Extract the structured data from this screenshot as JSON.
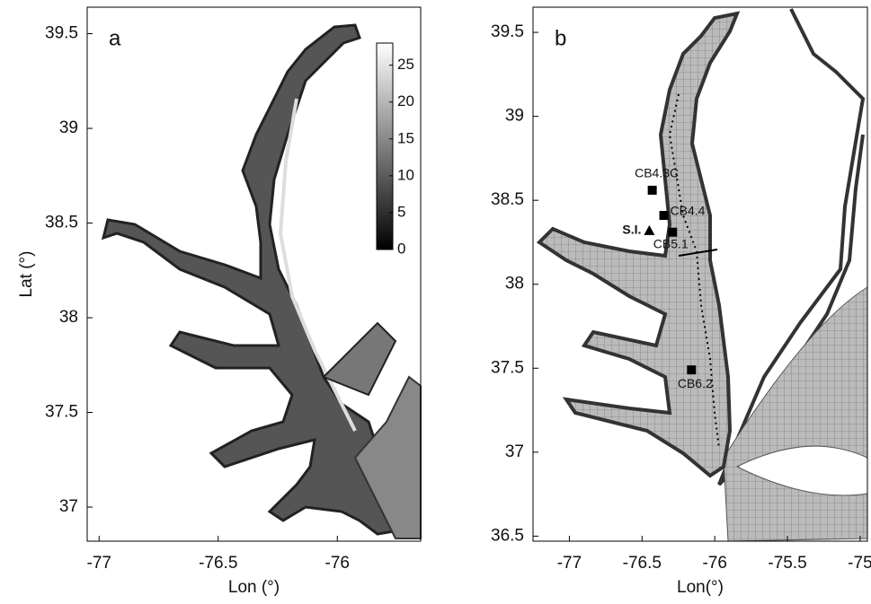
{
  "panels": [
    {
      "label": "a",
      "xlabel": "Lon (°)",
      "ylabel": "Lat (°)",
      "xlim": [
        -77.05,
        -75.65
      ],
      "ylim": [
        36.82,
        39.64
      ],
      "xticks": [
        -77,
        -76.5,
        -76
      ],
      "yticks": [
        37,
        37.5,
        38,
        38.5,
        39,
        39.5
      ],
      "colorbar": {
        "lim": [
          0,
          28
        ],
        "ticks": [
          0,
          5,
          10,
          15,
          20,
          25
        ]
      }
    },
    {
      "label": "b",
      "xlabel": "Lon(°)",
      "xlim": [
        -77.25,
        -74.95
      ],
      "ylim": [
        36.47,
        39.65
      ],
      "xticks": [
        -77,
        -76.5,
        -76,
        -75.5,
        -75
      ],
      "yticks": [
        36.5,
        37,
        37.5,
        38,
        38.5,
        39,
        39.5
      ],
      "stations": [
        {
          "name": "CB4.3C",
          "lon": -76.43,
          "lat": 38.56,
          "marker": "square"
        },
        {
          "name": "CB4.4",
          "lon": -76.35,
          "lat": 38.41,
          "marker": "square"
        },
        {
          "name": "S.I.",
          "lon": -76.45,
          "lat": 38.32,
          "marker": "triangle"
        },
        {
          "name": "CB5.1",
          "lon": -76.29,
          "lat": 38.31,
          "marker": "square"
        },
        {
          "name": "CB6.2",
          "lon": -76.16,
          "lat": 37.49,
          "marker": "square"
        }
      ]
    }
  ]
}
